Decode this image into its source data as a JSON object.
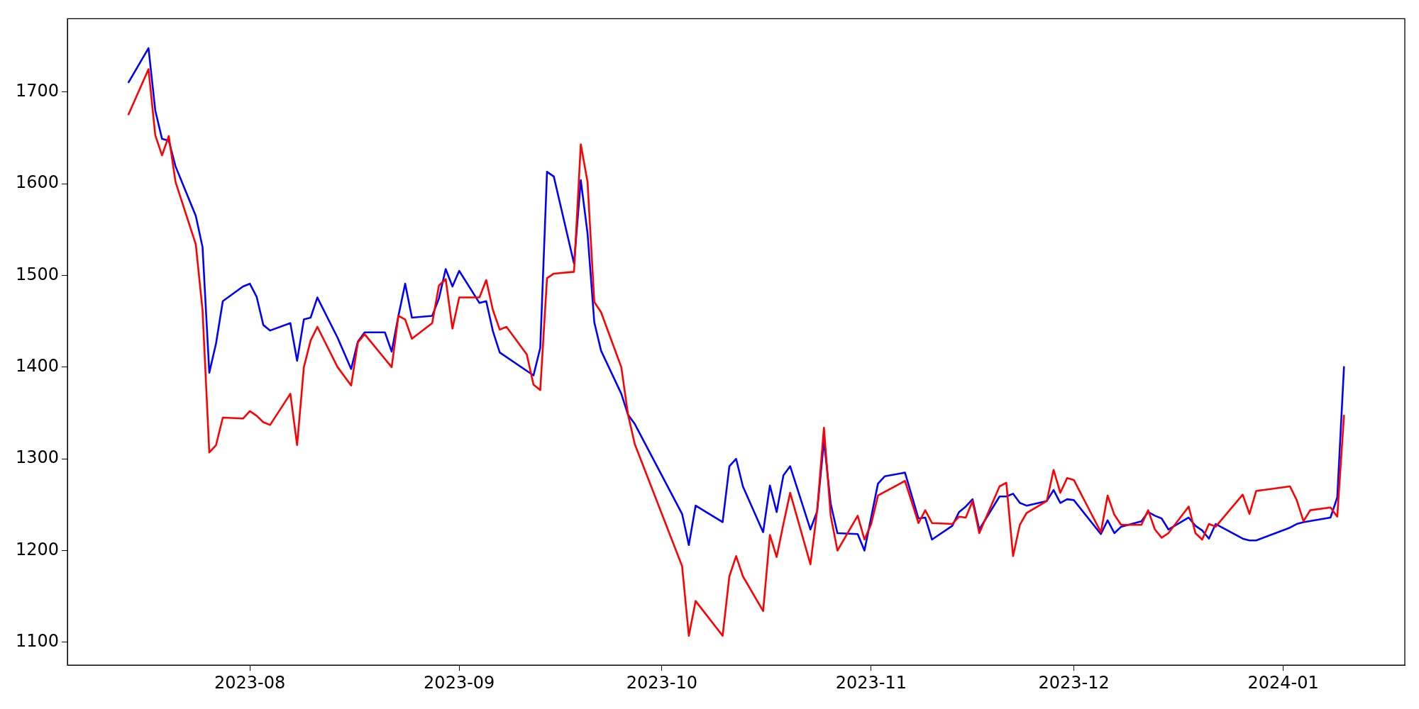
{
  "chart_data": {
    "type": "line",
    "xlim": [
      "2023-07-05",
      "2024-01-19"
    ],
    "xticks": [
      "2023-08",
      "2023-09",
      "2023-10",
      "2023-11",
      "2023-12",
      "2024-01"
    ],
    "ylim": [
      1075,
      1780
    ],
    "yticks": [
      1100,
      1200,
      1300,
      1400,
      1500,
      1600,
      1700
    ],
    "grid": false,
    "legend": false,
    "marker": "none",
    "line_style": "solid",
    "series": [
      {
        "color": "#ff0000",
        "x": [
          "2023-07-14",
          "2023-07-17",
          "2023-07-18",
          "2023-07-19",
          "2023-07-20",
          "2023-07-21",
          "2023-07-24",
          "2023-07-25",
          "2023-07-26",
          "2023-07-27",
          "2023-07-28",
          "2023-07-31",
          "2023-08-01",
          "2023-08-02",
          "2023-08-03",
          "2023-08-04",
          "2023-08-07",
          "2023-08-08",
          "2023-08-09",
          "2023-08-10",
          "2023-08-11",
          "2023-08-14",
          "2023-08-16",
          "2023-08-17",
          "2023-08-18",
          "2023-08-22",
          "2023-08-23",
          "2023-08-24",
          "2023-08-25",
          "2023-08-28",
          "2023-08-29",
          "2023-08-30",
          "2023-08-31",
          "2023-09-01",
          "2023-09-04",
          "2023-09-05",
          "2023-09-06",
          "2023-09-07",
          "2023-09-08",
          "2023-09-11",
          "2023-09-12",
          "2023-09-13",
          "2023-09-14",
          "2023-09-15",
          "2023-09-18",
          "2023-09-19",
          "2023-09-20",
          "2023-09-21",
          "2023-09-22",
          "2023-09-25",
          "2023-09-26",
          "2023-09-27",
          "2023-10-04",
          "2023-10-05",
          "2023-10-06",
          "2023-10-10",
          "2023-10-11",
          "2023-10-12",
          "2023-10-13",
          "2023-10-16",
          "2023-10-17",
          "2023-10-18",
          "2023-10-19",
          "2023-10-20",
          "2023-10-23",
          "2023-10-24",
          "2023-10-25",
          "2023-10-26",
          "2023-10-27",
          "2023-10-30",
          "2023-10-31",
          "2023-11-01",
          "2023-11-02",
          "2023-11-06",
          "2023-11-08",
          "2023-11-09",
          "2023-11-10",
          "2023-11-13",
          "2023-11-14",
          "2023-11-15",
          "2023-11-16",
          "2023-11-17",
          "2023-11-20",
          "2023-11-21",
          "2023-11-22",
          "2023-11-23",
          "2023-11-24",
          "2023-11-27",
          "2023-11-28",
          "2023-11-29",
          "2023-11-30",
          "2023-12-01",
          "2023-12-05",
          "2023-12-06",
          "2023-12-07",
          "2023-12-08",
          "2023-12-11",
          "2023-12-12",
          "2023-12-13",
          "2023-12-14",
          "2023-12-15",
          "2023-12-18",
          "2023-12-19",
          "2023-12-20",
          "2023-12-21",
          "2023-12-22",
          "2023-12-26",
          "2023-12-27",
          "2023-12-28",
          "2024-01-02",
          "2024-01-03",
          "2024-01-04",
          "2024-01-05",
          "2024-01-08",
          "2024-01-09",
          "2024-01-10"
        ],
        "values": [
          1675,
          1725,
          1653,
          1631,
          1652,
          1602,
          1534,
          1462,
          1307,
          1315,
          1345,
          1344,
          1352,
          1347,
          1340,
          1337,
          1371,
          1315,
          1400,
          1429,
          1444,
          1400,
          1380,
          1427,
          1436,
          1400,
          1456,
          1452,
          1431,
          1448,
          1489,
          1496,
          1442,
          1476,
          1476,
          1495,
          1462,
          1441,
          1444,
          1414,
          1381,
          1375,
          1497,
          1502,
          1504,
          1643,
          1602,
          1471,
          1460,
          1400,
          1348,
          1316,
          1183,
          1107,
          1145,
          1107,
          1172,
          1194,
          1172,
          1134,
          1217,
          1193,
          1229,
          1263,
          1185,
          1244,
          1334,
          1238,
          1200,
          1238,
          1212,
          1229,
          1260,
          1276,
          1230,
          1244,
          1230,
          1229,
          1237,
          1236,
          1254,
          1219,
          1270,
          1274,
          1194,
          1228,
          1241,
          1254,
          1288,
          1263,
          1279,
          1277,
          1220,
          1260,
          1239,
          1228,
          1228,
          1244,
          1223,
          1214,
          1219,
          1248,
          1219,
          1212,
          1229,
          1226,
          1261,
          1240,
          1265,
          1270,
          1255,
          1232,
          1244,
          1247,
          1237,
          1348
        ]
      },
      {
        "color": "#0000ff",
        "x": [
          "2023-07-14",
          "2023-07-17",
          "2023-07-18",
          "2023-07-19",
          "2023-07-20",
          "2023-07-21",
          "2023-07-24",
          "2023-07-25",
          "2023-07-26",
          "2023-07-27",
          "2023-07-28",
          "2023-07-31",
          "2023-08-01",
          "2023-08-02",
          "2023-08-03",
          "2023-08-04",
          "2023-08-07",
          "2023-08-08",
          "2023-08-09",
          "2023-08-10",
          "2023-08-11",
          "2023-08-14",
          "2023-08-16",
          "2023-08-17",
          "2023-08-18",
          "2023-08-21",
          "2023-08-22",
          "2023-08-23",
          "2023-08-24",
          "2023-08-25",
          "2023-08-28",
          "2023-08-29",
          "2023-08-30",
          "2023-08-31",
          "2023-09-01",
          "2023-09-04",
          "2023-09-05",
          "2023-09-06",
          "2023-09-07",
          "2023-09-12",
          "2023-09-13",
          "2023-09-14",
          "2023-09-15",
          "2023-09-18",
          "2023-09-19",
          "2023-09-20",
          "2023-09-21",
          "2023-09-22",
          "2023-09-25",
          "2023-09-26",
          "2023-09-27",
          "2023-10-04",
          "2023-10-05",
          "2023-10-06",
          "2023-10-10",
          "2023-10-11",
          "2023-10-12",
          "2023-10-13",
          "2023-10-16",
          "2023-10-17",
          "2023-10-18",
          "2023-10-19",
          "2023-10-20",
          "2023-10-23",
          "2023-10-24",
          "2023-10-25",
          "2023-10-26",
          "2023-10-27",
          "2023-10-30",
          "2023-10-31",
          "2023-11-02",
          "2023-11-03",
          "2023-11-06",
          "2023-11-08",
          "2023-11-09",
          "2023-11-10",
          "2023-11-13",
          "2023-11-14",
          "2023-11-15",
          "2023-11-16",
          "2023-11-17",
          "2023-11-20",
          "2023-11-21",
          "2023-11-22",
          "2023-11-23",
          "2023-11-24",
          "2023-11-27",
          "2023-11-28",
          "2023-11-29",
          "2023-11-30",
          "2023-12-01",
          "2023-12-05",
          "2023-12-06",
          "2023-12-07",
          "2023-12-08",
          "2023-12-11",
          "2023-12-12",
          "2023-12-13",
          "2023-12-14",
          "2023-12-15",
          "2023-12-18",
          "2023-12-19",
          "2023-12-20",
          "2023-12-21",
          "2023-12-22",
          "2023-12-26",
          "2023-12-27",
          "2023-12-28",
          "2024-01-02",
          "2024-01-03",
          "2024-01-04",
          "2024-01-08",
          "2024-01-09",
          "2024-01-10"
        ],
        "values": [
          1710,
          1748,
          1680,
          1649,
          1647,
          1619,
          1565,
          1531,
          1394,
          1426,
          1472,
          1488,
          1491,
          1477,
          1446,
          1440,
          1448,
          1407,
          1452,
          1454,
          1476,
          1432,
          1398,
          1428,
          1438,
          1438,
          1417,
          1456,
          1491,
          1454,
          1456,
          1475,
          1507,
          1488,
          1505,
          1470,
          1472,
          1439,
          1416,
          1391,
          1421,
          1613,
          1608,
          1513,
          1604,
          1546,
          1449,
          1418,
          1371,
          1348,
          1338,
          1240,
          1206,
          1249,
          1231,
          1292,
          1300,
          1270,
          1220,
          1271,
          1242,
          1282,
          1292,
          1223,
          1243,
          1320,
          1251,
          1219,
          1218,
          1200,
          1273,
          1281,
          1285,
          1235,
          1236,
          1212,
          1227,
          1242,
          1248,
          1256,
          1223,
          1259,
          1259,
          1262,
          1252,
          1249,
          1254,
          1266,
          1252,
          1256,
          1255,
          1218,
          1233,
          1219,
          1226,
          1232,
          1242,
          1238,
          1235,
          1223,
          1236,
          1227,
          1222,
          1213,
          1229,
          1213,
          1211,
          1211,
          1225,
          1229,
          1231,
          1236,
          1258,
          1401
        ]
      }
    ]
  }
}
